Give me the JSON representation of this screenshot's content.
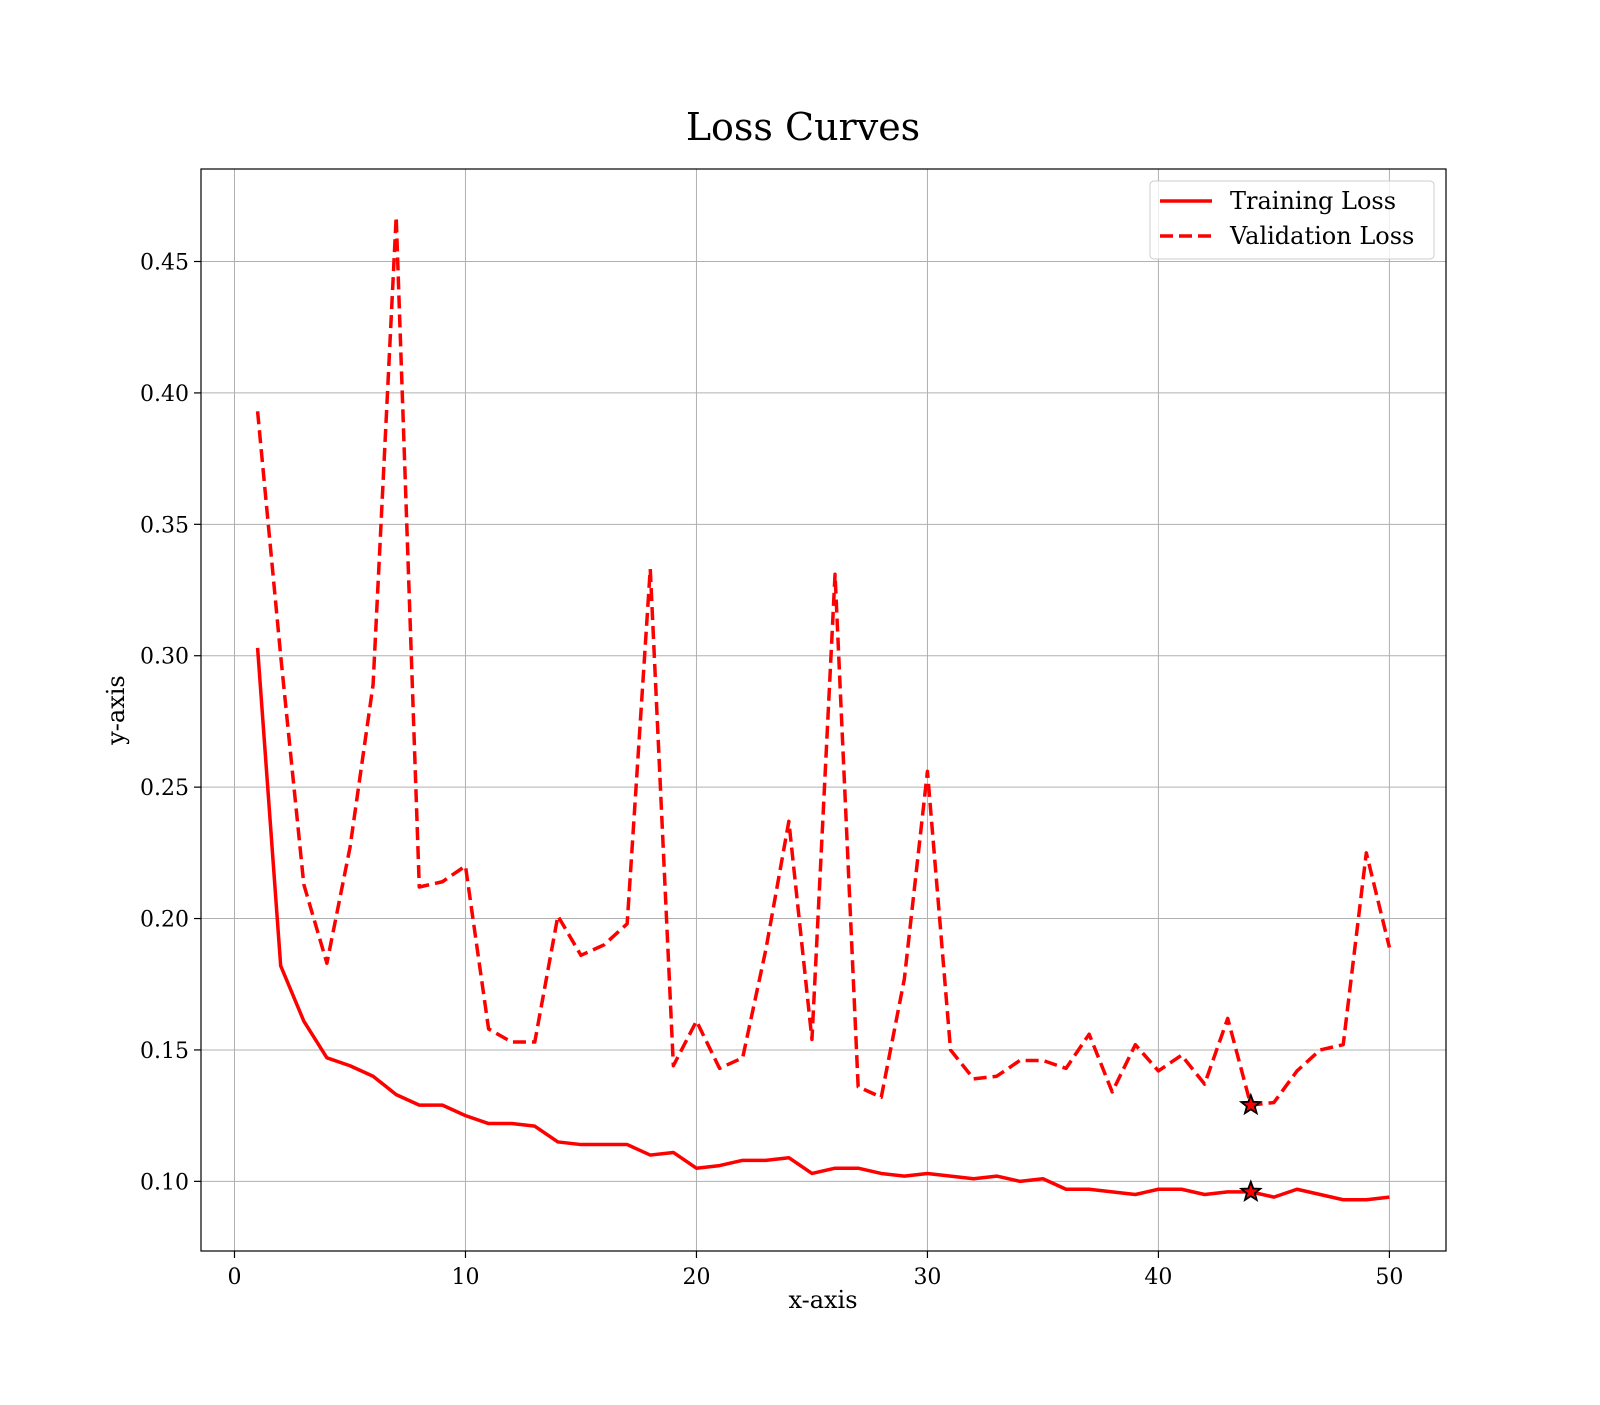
{
  "chart_data": {
    "type": "line",
    "title": "Loss Curves",
    "xlabel": "x-axis",
    "ylabel": "y-axis",
    "xlim": [
      -1.45,
      52.45
    ],
    "ylim": [
      0.0735,
      0.4852
    ],
    "xticks": [
      0,
      10,
      20,
      30,
      40,
      50
    ],
    "xtick_labels": [
      "0",
      "10",
      "20",
      "30",
      "40",
      "50"
    ],
    "yticks": [
      0.1,
      0.15,
      0.2,
      0.25,
      0.3,
      0.35,
      0.4,
      0.45
    ],
    "ytick_labels": [
      "0.10",
      "0.15",
      "0.20",
      "0.25",
      "0.30",
      "0.35",
      "0.40",
      "0.45"
    ],
    "grid": true,
    "legend_position": "top-right",
    "x": [
      1,
      2,
      3,
      4,
      5,
      6,
      7,
      8,
      9,
      10,
      11,
      12,
      13,
      14,
      15,
      16,
      17,
      18,
      19,
      20,
      21,
      22,
      23,
      24,
      25,
      26,
      27,
      28,
      29,
      30,
      31,
      32,
      33,
      34,
      35,
      36,
      37,
      38,
      39,
      40,
      41,
      42,
      43,
      44,
      45,
      46,
      47,
      48,
      49,
      50
    ],
    "series": [
      {
        "name": "Training Loss",
        "color": "#ff0000",
        "style": "solid",
        "values": [
          0.303,
          0.182,
          0.161,
          0.147,
          0.144,
          0.14,
          0.133,
          0.129,
          0.129,
          0.125,
          0.122,
          0.122,
          0.121,
          0.115,
          0.114,
          0.114,
          0.114,
          0.11,
          0.111,
          0.105,
          0.106,
          0.108,
          0.108,
          0.109,
          0.103,
          0.105,
          0.105,
          0.103,
          0.102,
          0.103,
          0.102,
          0.101,
          0.102,
          0.1,
          0.101,
          0.097,
          0.097,
          0.096,
          0.095,
          0.097,
          0.097,
          0.095,
          0.096,
          0.096,
          0.094,
          0.097,
          0.095,
          0.093,
          0.093,
          0.094
        ]
      },
      {
        "name": "Validation Loss",
        "color": "#ff0000",
        "style": "dashed",
        "values": [
          0.393,
          0.3,
          0.213,
          0.183,
          0.227,
          0.289,
          0.467,
          0.212,
          0.214,
          0.22,
          0.158,
          0.153,
          0.153,
          0.201,
          0.186,
          0.19,
          0.198,
          0.333,
          0.144,
          0.161,
          0.143,
          0.147,
          0.188,
          0.237,
          0.154,
          0.331,
          0.136,
          0.132,
          0.177,
          0.256,
          0.15,
          0.139,
          0.14,
          0.146,
          0.146,
          0.143,
          0.156,
          0.134,
          0.152,
          0.142,
          0.148,
          0.137,
          0.162,
          0.129,
          0.13,
          0.142,
          0.15,
          0.152,
          0.225,
          0.189
        ]
      }
    ],
    "markers": [
      {
        "series": "Training Loss",
        "x": 44,
        "y": 0.096,
        "symbol": "star"
      },
      {
        "series": "Validation Loss",
        "x": 44,
        "y": 0.129,
        "symbol": "star"
      }
    ]
  }
}
